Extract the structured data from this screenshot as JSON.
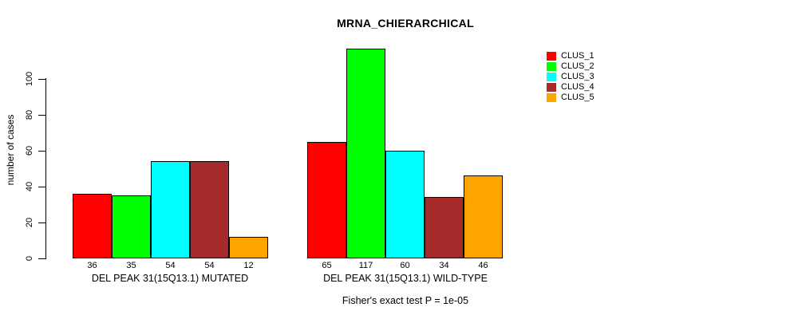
{
  "chart_data": {
    "type": "bar",
    "title": "MRNA_CHIERARCHICAL",
    "ylabel": "number of cases",
    "xlabel": "",
    "ylim": [
      0,
      120
    ],
    "yticks": [
      0,
      20,
      40,
      60,
      80,
      100
    ],
    "grid": false,
    "legend_position": "top-right",
    "series": [
      {
        "name": "CLUS_1",
        "color": "#FF0000"
      },
      {
        "name": "CLUS_2",
        "color": "#00FF00"
      },
      {
        "name": "CLUS_3",
        "color": "#00FFFF"
      },
      {
        "name": "CLUS_4",
        "color": "#A52A2A"
      },
      {
        "name": "CLUS_5",
        "color": "#FFA500"
      }
    ],
    "groups": [
      {
        "label": "DEL PEAK 31(15Q13.1) MUTATED",
        "values": [
          36,
          35,
          54,
          54,
          12
        ]
      },
      {
        "label": "DEL PEAK 31(15Q13.1) WILD-TYPE",
        "values": [
          65,
          117,
          60,
          34,
          46
        ]
      }
    ],
    "annotation": "Fisher's exact test P = 1e-05"
  }
}
